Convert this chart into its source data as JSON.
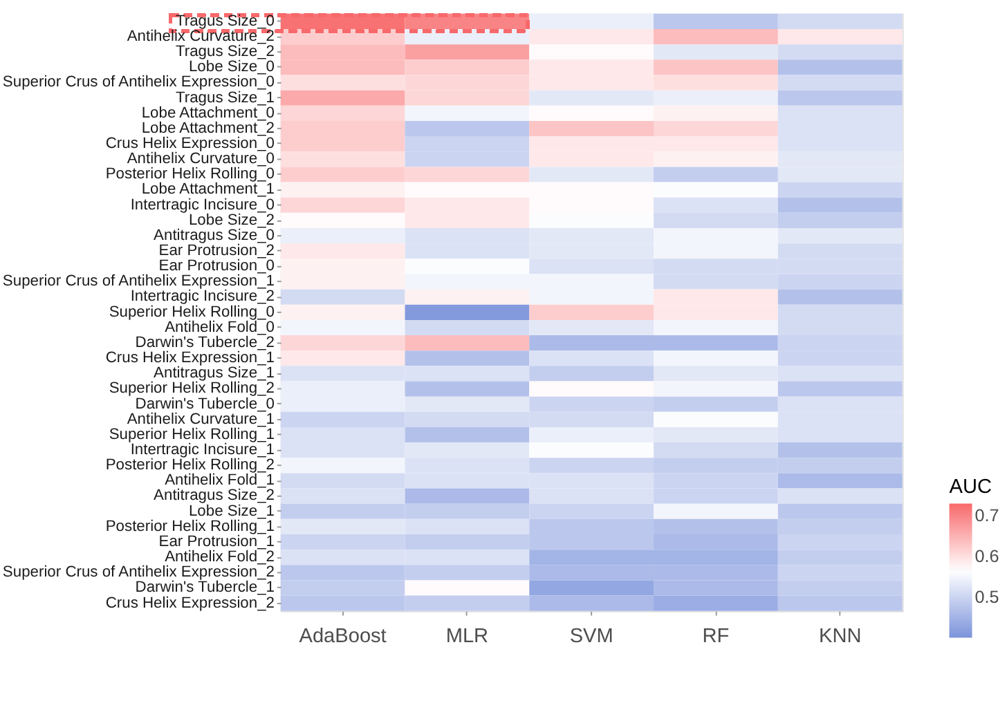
{
  "chart_data": {
    "type": "heatmap",
    "legend_title": "AUC",
    "categories": [
      "AdaBoost",
      "MLR",
      "SVM",
      "RF",
      "KNN"
    ],
    "y_categories": [
      "Tragus Size_0",
      "Antihelix Curvature_2",
      "Tragus Size_2",
      "Lobe Size_0",
      "Superior Crus of Antihelix Expression_0",
      "Tragus Size_1",
      "Lobe Attachment_0",
      "Lobe Attachment_2",
      "Crus Helix Expression_0",
      "Antihelix Curvature_0",
      "Posterior Helix Rolling_0",
      "Lobe Attachment_1",
      "Intertragic Incisure_0",
      "Lobe Size_2",
      "Antitragus Size_0",
      "Ear Protrusion_2",
      "Ear Protrusion_0",
      "Superior Crus of Antihelix Expression_1",
      "Intertragic Incisure_2",
      "Superior Helix Rolling_0",
      "Antihelix Fold_0",
      "Darwin's Tubercle_2",
      "Crus Helix Expression_1",
      "Antitragus Size_1",
      "Superior Helix Rolling_2",
      "Darwin's Tubercle_0",
      "Antihelix Curvature_1",
      "Superior Helix Rolling_1",
      "Intertragic Incisure_1",
      "Posterior Helix Rolling_2",
      "Antihelix Fold_1",
      "Antitragus Size_2",
      "Lobe Size_1",
      "Posterior Helix Rolling_1",
      "Ear Protrusion_1",
      "Antihelix Fold_2",
      "Superior Crus of Antihelix Expression_2",
      "Darwin's Tubercle_1",
      "Crus Helix Expression_2"
    ],
    "cells": [
      [
        0.72,
        0.7,
        0.54,
        0.48,
        0.51
      ],
      [
        0.62,
        0.54,
        0.59,
        0.64,
        0.59
      ],
      [
        0.64,
        0.67,
        0.57,
        0.53,
        0.51
      ],
      [
        0.64,
        0.62,
        0.59,
        0.63,
        0.47
      ],
      [
        0.6,
        0.61,
        0.59,
        0.6,
        0.51
      ],
      [
        0.66,
        0.61,
        0.53,
        0.54,
        0.48
      ],
      [
        0.61,
        0.55,
        0.57,
        0.58,
        0.52
      ],
      [
        0.62,
        0.48,
        0.63,
        0.61,
        0.52
      ],
      [
        0.62,
        0.5,
        0.59,
        0.59,
        0.52
      ],
      [
        0.6,
        0.5,
        0.59,
        0.58,
        0.53
      ],
      [
        0.62,
        0.61,
        0.53,
        0.49,
        0.53
      ],
      [
        0.58,
        0.57,
        0.57,
        0.56,
        0.5
      ],
      [
        0.61,
        0.59,
        0.57,
        0.52,
        0.47
      ],
      [
        0.57,
        0.59,
        0.56,
        0.51,
        0.49
      ],
      [
        0.54,
        0.52,
        0.53,
        0.55,
        0.53
      ],
      [
        0.59,
        0.52,
        0.53,
        0.55,
        0.51
      ],
      [
        0.58,
        0.56,
        0.52,
        0.51,
        0.51
      ],
      [
        0.58,
        0.55,
        0.55,
        0.51,
        0.5
      ],
      [
        0.51,
        0.58,
        0.55,
        0.59,
        0.47
      ],
      [
        0.58,
        0.41,
        0.62,
        0.59,
        0.51
      ],
      [
        0.55,
        0.51,
        0.53,
        0.55,
        0.51
      ],
      [
        0.61,
        0.64,
        0.46,
        0.46,
        0.5
      ],
      [
        0.59,
        0.47,
        0.52,
        0.55,
        0.5
      ],
      [
        0.52,
        0.52,
        0.49,
        0.53,
        0.52
      ],
      [
        0.54,
        0.47,
        0.57,
        0.55,
        0.48
      ],
      [
        0.54,
        0.53,
        0.5,
        0.49,
        0.52
      ],
      [
        0.5,
        0.51,
        0.51,
        0.56,
        0.52
      ],
      [
        0.52,
        0.47,
        0.54,
        0.53,
        0.52
      ],
      [
        0.52,
        0.53,
        0.56,
        0.51,
        0.47
      ],
      [
        0.55,
        0.52,
        0.5,
        0.49,
        0.49
      ],
      [
        0.51,
        0.52,
        0.52,
        0.5,
        0.46
      ],
      [
        0.52,
        0.46,
        0.52,
        0.5,
        0.52
      ],
      [
        0.49,
        0.49,
        0.5,
        0.55,
        0.48
      ],
      [
        0.53,
        0.52,
        0.48,
        0.47,
        0.49
      ],
      [
        0.5,
        0.49,
        0.48,
        0.46,
        0.5
      ],
      [
        0.52,
        0.52,
        0.45,
        0.45,
        0.49
      ],
      [
        0.48,
        0.49,
        0.46,
        0.46,
        0.5
      ],
      [
        0.49,
        0.57,
        0.43,
        0.46,
        0.49
      ],
      [
        0.48,
        0.49,
        0.46,
        0.44,
        0.48
      ]
    ],
    "clim": [
      0.4,
      0.73
    ],
    "cticks": [
      0.5,
      0.6,
      0.7
    ]
  }
}
